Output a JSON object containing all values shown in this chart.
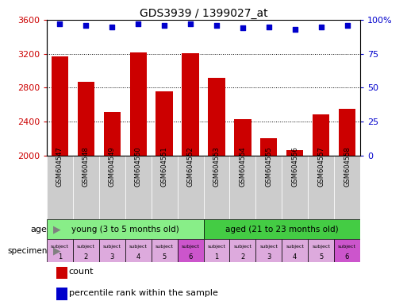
{
  "title": "GDS3939 / 1399027_at",
  "samples": [
    "GSM604547",
    "GSM604548",
    "GSM604549",
    "GSM604550",
    "GSM604551",
    "GSM604552",
    "GSM604553",
    "GSM604554",
    "GSM604555",
    "GSM604556",
    "GSM604557",
    "GSM604558"
  ],
  "counts": [
    3170,
    2870,
    2510,
    3220,
    2760,
    3210,
    2920,
    2430,
    2200,
    2065,
    2490,
    2550
  ],
  "percentile_ranks": [
    97,
    96,
    95,
    97,
    96,
    97,
    96,
    94,
    95,
    93,
    95,
    96
  ],
  "ylim_left": [
    2000,
    3600
  ],
  "ylim_right": [
    0,
    100
  ],
  "yticks_left": [
    2000,
    2400,
    2800,
    3200,
    3600
  ],
  "yticks_right": [
    0,
    25,
    50,
    75,
    100
  ],
  "bar_color": "#cc0000",
  "dot_color": "#0000cc",
  "age_groups": [
    {
      "label": "young (3 to 5 months old)",
      "start": 0,
      "end": 6,
      "color": "#88ee88"
    },
    {
      "label": "aged (21 to 23 months old)",
      "start": 6,
      "end": 12,
      "color": "#44cc44"
    }
  ],
  "specimen_colors_light": [
    "#ddaadd",
    "#ddaadd",
    "#ddaadd",
    "#ddaadd",
    "#ddaadd",
    "#cc55cc",
    "#ddaadd",
    "#ddaadd",
    "#ddaadd",
    "#ddaadd",
    "#ddaadd",
    "#cc55cc"
  ],
  "specimen_numbers": [
    1,
    2,
    3,
    4,
    5,
    6,
    1,
    2,
    3,
    4,
    5,
    6
  ],
  "tick_color_left": "#cc0000",
  "tick_color_right": "#0000cc",
  "background_color": "#ffffff",
  "sample_label_bg": "#cccccc",
  "grid_color": "#000000"
}
